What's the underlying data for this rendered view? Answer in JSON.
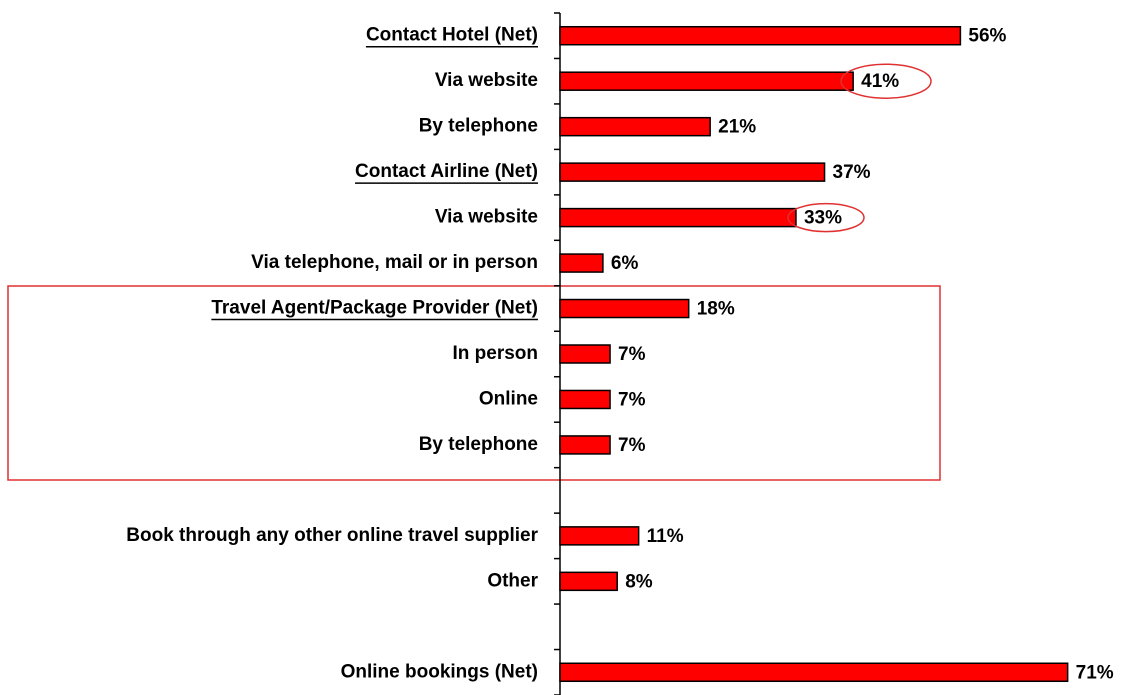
{
  "chart_data": {
    "type": "barh",
    "categories": [
      "Contact Hotel (Net)",
      "Via website",
      "By telephone",
      "Contact Airline (Net)",
      "Via website",
      "Via telephone, mail or in person",
      "Travel Agent/Package Provider (Net)",
      "In person",
      "Online",
      "By telephone",
      null,
      "Book through any other online travel supplier",
      "Other",
      null,
      "Online bookings (Net)"
    ],
    "values": [
      56,
      41,
      21,
      37,
      33,
      6,
      18,
      7,
      7,
      7,
      null,
      11,
      8,
      null,
      71
    ],
    "value_labels": [
      "56%",
      "41%",
      "21%",
      "37%",
      "33%",
      "6%",
      "18%",
      "7%",
      "7%",
      "7%",
      null,
      "11%",
      "8%",
      null,
      "71%"
    ],
    "underlined_categories": [
      0,
      3,
      6
    ],
    "color": "#ff0000",
    "xlim": [
      0,
      80
    ]
  }
}
